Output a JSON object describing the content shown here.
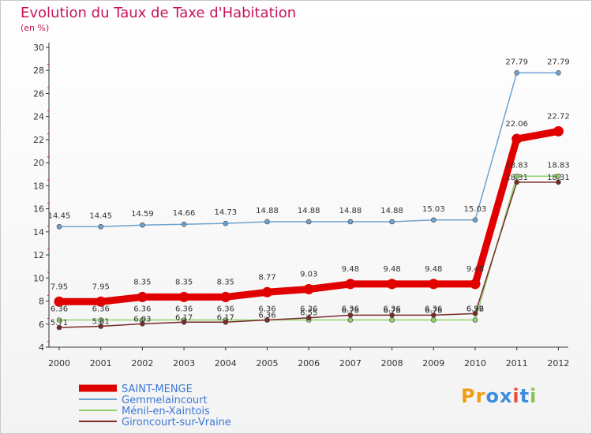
{
  "header": {
    "title": "Evolution du Taux de Taxe d'Habitation",
    "subtitle": "(en %)"
  },
  "logo": {
    "text": "Proxiti",
    "letters": [
      "P",
      "r",
      "o",
      "x",
      "i",
      "t",
      "i"
    ],
    "colors": [
      "#f39c12",
      "#f39c12",
      "#3c8ddc",
      "#3c8ddc",
      "#e74c3c",
      "#3c8ddc",
      "#8bc34a"
    ]
  },
  "chart_data": {
    "type": "line",
    "x": [
      "2000",
      "2001",
      "2002",
      "2003",
      "2004",
      "2005",
      "2006",
      "2007",
      "2008",
      "2009",
      "2010",
      "2011",
      "2012"
    ],
    "ylim": [
      4,
      30
    ],
    "yticks": [
      "4",
      "6",
      "8",
      "10",
      "12",
      "14",
      "16",
      "18",
      "20",
      "22",
      "24",
      "26",
      "28",
      "30"
    ],
    "grid": false,
    "legend_position": "bottom-left",
    "series": [
      {
        "name": "SAINT-MENGE",
        "color": "#e00000",
        "values": [
          7.95,
          7.95,
          8.35,
          8.35,
          8.35,
          8.77,
          9.03,
          9.48,
          9.48,
          9.48,
          9.48,
          22.06,
          22.72
        ],
        "labels": [
          "7.95",
          "7.95",
          "8.35",
          "8.35",
          "8.35",
          "8.77",
          "9.03",
          "9.48",
          "9.48",
          "9.48",
          "9.48",
          "22.06",
          "22.72"
        ]
      },
      {
        "name": "Gemmelaincourt",
        "color": "#6ea3d0",
        "values": [
          14.45,
          14.45,
          14.59,
          14.66,
          14.73,
          14.88,
          14.88,
          14.88,
          14.88,
          15.03,
          15.03,
          27.79,
          27.79
        ],
        "labels": [
          "14.45",
          "14.45",
          "14.59",
          "14.66",
          "14.73",
          "14.88",
          "14.88",
          "14.88",
          "14.88",
          "15.03",
          "15.03",
          "27.79",
          "27.79"
        ]
      },
      {
        "name": "Ménil-en-Xaintois",
        "color": "#8fd16a",
        "values": [
          6.36,
          6.36,
          6.36,
          6.36,
          6.36,
          6.36,
          6.36,
          6.36,
          6.36,
          6.36,
          6.36,
          18.83,
          18.83
        ],
        "labels": [
          "6.36",
          "6.36",
          "6.36",
          "6.36",
          "6.36",
          "6.36",
          "6.36",
          "6.36",
          "6.36",
          "6.36",
          "6.36",
          "18.83",
          "18.83"
        ]
      },
      {
        "name": "Gironcourt-sur-Vraine",
        "color": "#7a2a2a",
        "values": [
          5.71,
          5.81,
          6.03,
          6.17,
          6.17,
          6.36,
          6.55,
          6.78,
          6.78,
          6.78,
          6.92,
          18.31,
          18.31
        ],
        "labels": [
          "5.71",
          "5.81",
          "6.03",
          "6.17",
          "6.17",
          "6.36",
          "6.55",
          "6.78",
          "6.78",
          "6.78",
          "6.92",
          "18.31",
          "18.31"
        ]
      }
    ]
  }
}
